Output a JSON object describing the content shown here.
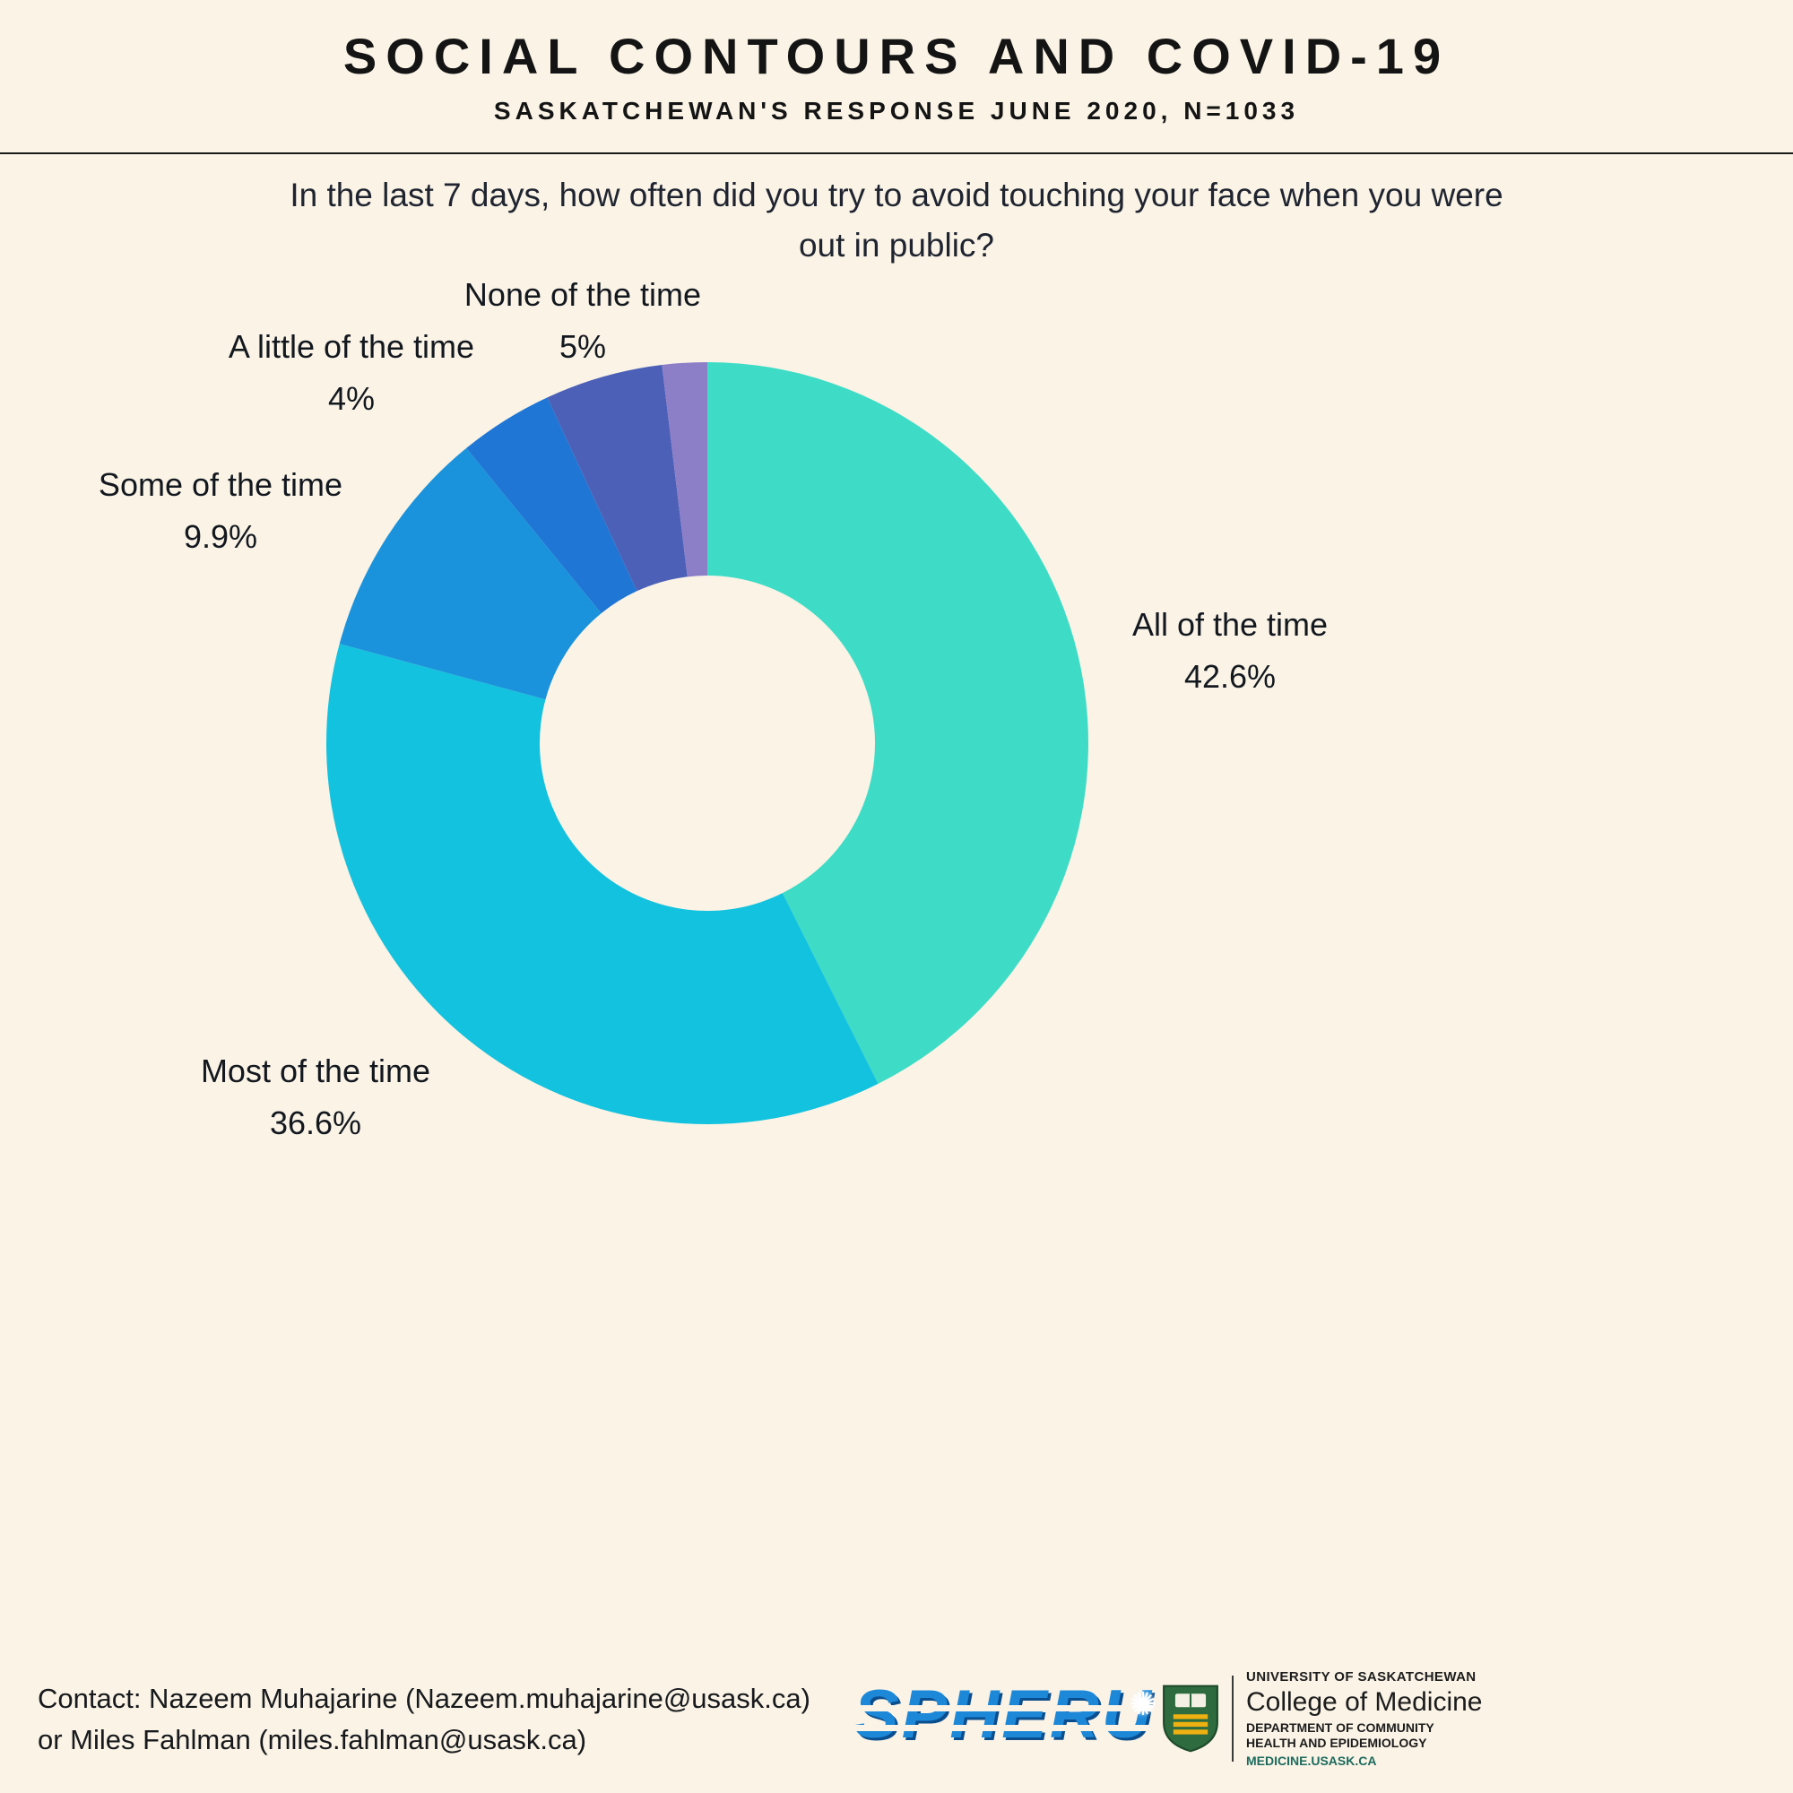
{
  "page": {
    "background_color": "#faf3e6"
  },
  "header": {
    "title": "SOCIAL CONTOURS AND COVID-19",
    "subtitle": "SASKATCHEWAN'S RESPONSE JUNE 2020, N=1033",
    "question_line1": "In the last 7 days, how often did you try to avoid touching your face when you were",
    "question_line2": "out in public?"
  },
  "chart_data": {
    "type": "pie",
    "subtype": "donut",
    "title": "In the last 7 days, how often did you try to avoid touching your face when you were out in public?",
    "sample": "N=1033",
    "start_angle_deg": -90,
    "direction": "clockwise",
    "inner_radius_ratio": 0.44,
    "legend_position": "outside-labels",
    "segments": [
      {
        "label": "All of the time",
        "value": 42.6,
        "display": "42.6%",
        "color": "#3edcc6",
        "labeled": true
      },
      {
        "label": "Most of the time",
        "value": 36.6,
        "display": "36.6%",
        "color": "#13c2de",
        "labeled": true
      },
      {
        "label": "Some of the time",
        "value": 9.9,
        "display": "9.9%",
        "color": "#1b93dc",
        "labeled": true
      },
      {
        "label": "A little of the time",
        "value": 4,
        "display": "4%",
        "color": "#1f76d4",
        "labeled": true
      },
      {
        "label": "None of the time",
        "value": 5,
        "display": "5%",
        "color": "#4c60b7",
        "labeled": true
      },
      {
        "label": "",
        "value": 1.9,
        "display": "",
        "color": "#8d7ec8",
        "labeled": false
      }
    ]
  },
  "footer": {
    "contact_line1": "Contact: Nazeem Muhajarine (Nazeem.muhajarine@usask.ca)",
    "contact_line2": "or Miles Fahlman (miles.fahlman@usask.ca)",
    "spheru_logo_text": "SPHERU",
    "usask": {
      "university": "UNIVERSITY OF SASKATCHEWAN",
      "college": "College of Medicine",
      "department_line1": "DEPARTMENT OF COMMUNITY",
      "department_line2": "HEALTH AND EPIDEMIOLOGY",
      "website": "MEDICINE.USASK.CA"
    }
  },
  "icons": {
    "starburst": "✺"
  },
  "colors": {
    "background": "#faf3e6",
    "text": "#151515",
    "spheru_blue": "#1d88d8"
  }
}
